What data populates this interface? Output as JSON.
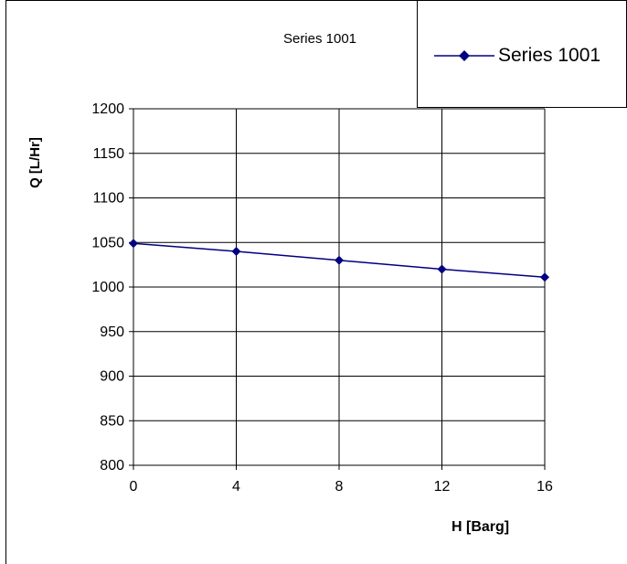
{
  "chart_data": {
    "type": "line",
    "title": "Series 1001",
    "xlabel": "H [Barg]",
    "ylabel": "Q [L/Hr]",
    "xlim": [
      0,
      16
    ],
    "ylim": [
      800,
      1200
    ],
    "x_ticks": [
      0,
      4,
      8,
      12,
      16
    ],
    "y_ticks": [
      800,
      850,
      900,
      950,
      1000,
      1050,
      1100,
      1150,
      1200
    ],
    "grid": true,
    "legend": "top-right",
    "series": [
      {
        "name": "Series 1001",
        "color": "#000080",
        "marker": "diamond",
        "x": [
          0,
          4,
          8,
          12,
          16
        ],
        "y": [
          1049,
          1040,
          1030,
          1020,
          1011
        ]
      }
    ]
  }
}
